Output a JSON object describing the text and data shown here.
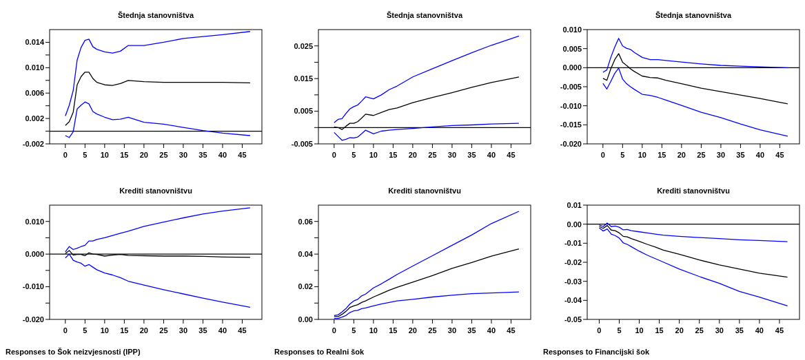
{
  "chart_data": [
    {
      "type": "line",
      "title": "Štednja stanovništva",
      "x": [
        0,
        1,
        2,
        3,
        4,
        5,
        6,
        7,
        8,
        10,
        12,
        14,
        16,
        20,
        25,
        30,
        35,
        40,
        47
      ],
      "xlim": [
        -4,
        50
      ],
      "xticks": [
        0,
        5,
        10,
        15,
        20,
        25,
        30,
        35,
        40,
        45
      ],
      "ylim": [
        -0.002,
        0.016
      ],
      "yticks": [
        {
          "value": -0.002,
          "label": "-0.002"
        },
        {
          "value": 0,
          "label": null
        },
        {
          "value": 0.002,
          "label": "0.002"
        },
        {
          "value": 0.004,
          "label": null
        },
        {
          "value": 0.006,
          "label": "0.006"
        },
        {
          "value": 0.008,
          "label": null
        },
        {
          "value": 0.01,
          "label": "0.010"
        },
        {
          "value": 0.012,
          "label": null
        },
        {
          "value": 0.014,
          "label": "0.014"
        }
      ],
      "ref_lines": [
        {
          "axis": "y",
          "value": 0,
          "color": "#000000"
        }
      ],
      "series": [
        {
          "color": "#000000",
          "values": [
            0.0009,
            0.0015,
            0.003,
            0.0073,
            0.0086,
            0.0093,
            0.0093,
            0.0083,
            0.0077,
            0.0073,
            0.0072,
            0.0075,
            0.008,
            0.0078,
            0.0077,
            0.0077,
            0.0077,
            0.0077,
            0.0076
          ]
        },
        {
          "color": "#0000ff",
          "values": [
            0.0024,
            0.0041,
            0.0064,
            0.0112,
            0.0132,
            0.0143,
            0.0145,
            0.0133,
            0.0129,
            0.0125,
            0.0123,
            0.0126,
            0.0135,
            0.0135,
            0.014,
            0.0146,
            0.0149,
            0.0152,
            0.0157
          ]
        },
        {
          "color": "#0000ff",
          "values": [
            -0.0007,
            -0.001,
            -0.0001,
            0.0035,
            0.0041,
            0.0046,
            0.0043,
            0.0031,
            0.0027,
            0.0022,
            0.0018,
            0.0019,
            0.0022,
            0.0014,
            0.0011,
            0.0006,
            0.0001,
            -0.0003,
            -0.0007
          ]
        }
      ]
    },
    {
      "type": "line",
      "title": "Štednja stanovništva",
      "x": [
        0,
        1,
        2,
        3,
        4,
        5,
        6,
        7,
        8,
        10,
        12,
        14,
        16,
        20,
        25,
        30,
        35,
        40,
        47
      ],
      "xlim": [
        -4,
        50
      ],
      "xticks": [
        0,
        5,
        10,
        15,
        20,
        25,
        30,
        35,
        40,
        45
      ],
      "ylim": [
        -0.005,
        0.03
      ],
      "yticks": [
        {
          "value": -0.005,
          "label": "-0.005"
        },
        {
          "value": 0,
          "label": null
        },
        {
          "value": 0.005,
          "label": "0.005"
        },
        {
          "value": 0.01,
          "label": null
        },
        {
          "value": 0.015,
          "label": "0.015"
        },
        {
          "value": 0.02,
          "label": null
        },
        {
          "value": 0.025,
          "label": "0.025"
        }
      ],
      "ref_lines": [
        {
          "axis": "y",
          "value": 0,
          "color": "#000000"
        }
      ],
      "series": [
        {
          "color": "#000000",
          "values": [
            0.0002,
            0,
            -0.0006,
            0.0004,
            0.0013,
            0.0013,
            0.0018,
            0.0029,
            0.0041,
            0.0037,
            0.0046,
            0.0055,
            0.006,
            0.0076,
            0.0092,
            0.0107,
            0.0123,
            0.0138,
            0.0155
          ]
        },
        {
          "color": "#0000ff",
          "values": [
            0.0015,
            0.0025,
            0.0027,
            0.0043,
            0.0057,
            0.0064,
            0.0069,
            0.0081,
            0.0094,
            0.0088,
            0.01,
            0.0116,
            0.0127,
            0.0155,
            0.018,
            0.0205,
            0.0229,
            0.0252,
            0.028
          ]
        },
        {
          "color": "#0000ff",
          "values": [
            -0.0015,
            -0.0027,
            -0.0039,
            -0.0036,
            -0.0031,
            -0.0032,
            -0.0029,
            -0.0019,
            -0.0008,
            -0.0019,
            -0.0011,
            -0.0008,
            -0.0006,
            -0.0003,
            0.0002,
            0.0006,
            0.0008,
            0.0011,
            0.0013
          ]
        }
      ]
    },
    {
      "type": "line",
      "title": "Štednja stanovništva",
      "x": [
        0,
        1,
        2,
        3,
        4,
        5,
        6,
        7,
        8,
        10,
        12,
        14,
        16,
        20,
        25,
        30,
        35,
        40,
        47
      ],
      "xlim": [
        -4,
        50
      ],
      "xticks": [
        0,
        5,
        10,
        15,
        20,
        25,
        30,
        35,
        40,
        45
      ],
      "ylim": [
        -0.02,
        0.01
      ],
      "yticks": [
        {
          "value": -0.02,
          "label": "-0.020"
        },
        {
          "value": -0.015,
          "label": "-0.015"
        },
        {
          "value": -0.01,
          "label": "-0.010"
        },
        {
          "value": -0.005,
          "label": "-0.005"
        },
        {
          "value": 0,
          "label": "0.000"
        },
        {
          "value": 0.005,
          "label": "0.005"
        },
        {
          "value": 0.01,
          "label": "0.010"
        }
      ],
      "ref_lines": [
        {
          "axis": "y",
          "value": 0,
          "color": "#000000"
        }
      ],
      "series": [
        {
          "color": "#000000",
          "values": [
            -0.0028,
            -0.0033,
            -0.0003,
            0.0021,
            0.0037,
            0.0014,
            0.0006,
            -0.0003,
            -0.001,
            -0.0022,
            -0.0026,
            -0.0027,
            -0.0033,
            -0.0042,
            -0.0054,
            -0.0063,
            -0.0072,
            -0.0081,
            -0.0095
          ]
        },
        {
          "color": "#0000ff",
          "values": [
            -0.0012,
            -0.0006,
            0.0027,
            0.0054,
            0.0077,
            0.0057,
            0.0051,
            0.0048,
            0.004,
            0.0027,
            0.0021,
            0.0021,
            0.0019,
            0.0015,
            0.001,
            0.0006,
            0.0004,
            0.0002,
            0
          ]
        },
        {
          "color": "#0000ff",
          "values": [
            -0.0041,
            -0.0056,
            -0.0036,
            -0.0015,
            -0.0001,
            -0.003,
            -0.0042,
            -0.005,
            -0.0057,
            -0.007,
            -0.0073,
            -0.0078,
            -0.0085,
            -0.0099,
            -0.0117,
            -0.0131,
            -0.0148,
            -0.0163,
            -0.018
          ]
        }
      ]
    },
    {
      "type": "line",
      "title": "Krediti stanovništvu",
      "x": [
        0,
        1,
        2,
        3,
        4,
        5,
        6,
        7,
        8,
        10,
        12,
        14,
        16,
        20,
        25,
        30,
        35,
        40,
        47
      ],
      "xlim": [
        -4,
        50
      ],
      "xticks": [
        0,
        5,
        10,
        15,
        20,
        25,
        30,
        35,
        40,
        45
      ],
      "ylim": [
        -0.02,
        0.015
      ],
      "yticks": [
        {
          "value": -0.02,
          "label": "-0.020"
        },
        {
          "value": -0.015,
          "label": null
        },
        {
          "value": -0.01,
          "label": "-0.010"
        },
        {
          "value": -0.005,
          "label": null
        },
        {
          "value": 0,
          "label": "0.000"
        },
        {
          "value": 0.005,
          "label": null
        },
        {
          "value": 0.01,
          "label": "0.010"
        }
      ],
      "ref_lines": [
        {
          "axis": "y",
          "value": 0,
          "color": "#000000"
        }
      ],
      "annotations": [
        "Responses to Šok neizvjesnosti (IPP)"
      ],
      "series": [
        {
          "color": "#000000",
          "values": [
            0.0002,
            0.0011,
            -0.0003,
            -0.0001,
            -0.0001,
            -0.0005,
            0.0004,
            0,
            -0.0001,
            -0.0006,
            -0.0003,
            -0.0001,
            -0.0004,
            -0.0005,
            -0.0006,
            -0.0006,
            -0.0007,
            -0.0009,
            -0.001
          ]
        },
        {
          "color": "#0000ff",
          "values": [
            0.0007,
            0.0023,
            0.0014,
            0.0018,
            0.0023,
            0.0027,
            0.004,
            0.004,
            0.0045,
            0.005,
            0.0057,
            0.0064,
            0.007,
            0.0085,
            0.0098,
            0.0111,
            0.0123,
            0.0132,
            0.0142
          ]
        },
        {
          "color": "#0000ff",
          "values": [
            -0.0012,
            0,
            -0.0019,
            -0.0024,
            -0.0028,
            -0.0037,
            -0.0032,
            -0.004,
            -0.0048,
            -0.0058,
            -0.0064,
            -0.0072,
            -0.0083,
            -0.0095,
            -0.0109,
            -0.0122,
            -0.0135,
            -0.0147,
            -0.0163
          ]
        }
      ]
    },
    {
      "type": "line",
      "title": "Krediti stanovništvu",
      "x": [
        0,
        1,
        2,
        3,
        4,
        5,
        6,
        7,
        8,
        10,
        12,
        14,
        16,
        20,
        25,
        30,
        35,
        40,
        47
      ],
      "xlim": [
        -4,
        50
      ],
      "xticks": [
        0,
        5,
        10,
        15,
        20,
        25,
        30,
        35,
        40,
        45
      ],
      "ylim": [
        0,
        0.07
      ],
      "yticks": [
        {
          "value": 0,
          "label": "0.00"
        },
        {
          "value": 0.01,
          "label": null
        },
        {
          "value": 0.02,
          "label": "0.02"
        },
        {
          "value": 0.03,
          "label": null
        },
        {
          "value": 0.04,
          "label": "0.04"
        },
        {
          "value": 0.05,
          "label": null
        },
        {
          "value": 0.06,
          "label": "0.06"
        }
      ],
      "annotations": [
        "Responses to Realni šok"
      ],
      "series": [
        {
          "color": "#000000",
          "values": [
            0.0017,
            0.0017,
            0.0031,
            0.0049,
            0.0073,
            0.0083,
            0.009,
            0.0104,
            0.0113,
            0.0137,
            0.0158,
            0.0179,
            0.0197,
            0.0228,
            0.0268,
            0.0313,
            0.0348,
            0.0387,
            0.0432
          ]
        },
        {
          "color": "#0000ff",
          "values": [
            0.0024,
            0.0028,
            0.0045,
            0.0066,
            0.0094,
            0.0113,
            0.0123,
            0.0144,
            0.0155,
            0.0193,
            0.0218,
            0.0246,
            0.0275,
            0.0327,
            0.039,
            0.0454,
            0.0517,
            0.0587,
            0.0662
          ]
        },
        {
          "color": "#0000ff",
          "values": [
            0.0006,
            0.0006,
            0.0014,
            0.0024,
            0.0042,
            0.0052,
            0.0055,
            0.0066,
            0.007,
            0.0083,
            0.0094,
            0.0104,
            0.0113,
            0.0123,
            0.0137,
            0.0148,
            0.0158,
            0.0162,
            0.0168
          ]
        }
      ]
    },
    {
      "type": "line",
      "title": "Krediti stanovništvu",
      "x": [
        0,
        1,
        2,
        3,
        4,
        5,
        6,
        7,
        8,
        10,
        12,
        14,
        16,
        20,
        25,
        30,
        35,
        40,
        47
      ],
      "xlim": [
        -3,
        50
      ],
      "xticks": [
        0,
        5,
        10,
        15,
        20,
        25,
        30,
        35,
        40,
        45
      ],
      "ylim": [
        -0.05,
        0.01
      ],
      "yticks": [
        {
          "value": -0.05,
          "label": "-0.05"
        },
        {
          "value": -0.04,
          "label": "-0.04"
        },
        {
          "value": -0.03,
          "label": "-0.03"
        },
        {
          "value": -0.02,
          "label": "-0.02"
        },
        {
          "value": -0.01,
          "label": "-0.01"
        },
        {
          "value": 0,
          "label": "0.00"
        },
        {
          "value": 0.01,
          "label": "0.01"
        }
      ],
      "ref_lines": [
        {
          "axis": "y",
          "value": 0,
          "color": "#000000"
        }
      ],
      "annotations": [
        "Responses to Financijski šok"
      ],
      "series": [
        {
          "color": "#000000",
          "values": [
            -0.0012,
            -0.0022,
            -0.0007,
            -0.0031,
            -0.0034,
            -0.0046,
            -0.0064,
            -0.0067,
            -0.0076,
            -0.009,
            -0.0106,
            -0.012,
            -0.0136,
            -0.0158,
            -0.0188,
            -0.0214,
            -0.0236,
            -0.0257,
            -0.0278
          ]
        },
        {
          "color": "#0000ff",
          "values": [
            -0.0004,
            -0.0012,
            0.0006,
            -0.0013,
            -0.001,
            -0.0016,
            -0.003,
            -0.0028,
            -0.0034,
            -0.004,
            -0.0046,
            -0.0052,
            -0.0058,
            -0.0064,
            -0.007,
            -0.0076,
            -0.0082,
            -0.0086,
            -0.0092
          ]
        },
        {
          "color": "#0000ff",
          "values": [
            -0.0019,
            -0.0036,
            -0.0025,
            -0.0052,
            -0.006,
            -0.0073,
            -0.0098,
            -0.0106,
            -0.0118,
            -0.0142,
            -0.0163,
            -0.0181,
            -0.0199,
            -0.0236,
            -0.0275,
            -0.0311,
            -0.0353,
            -0.0383,
            -0.0429
          ]
        }
      ]
    }
  ]
}
